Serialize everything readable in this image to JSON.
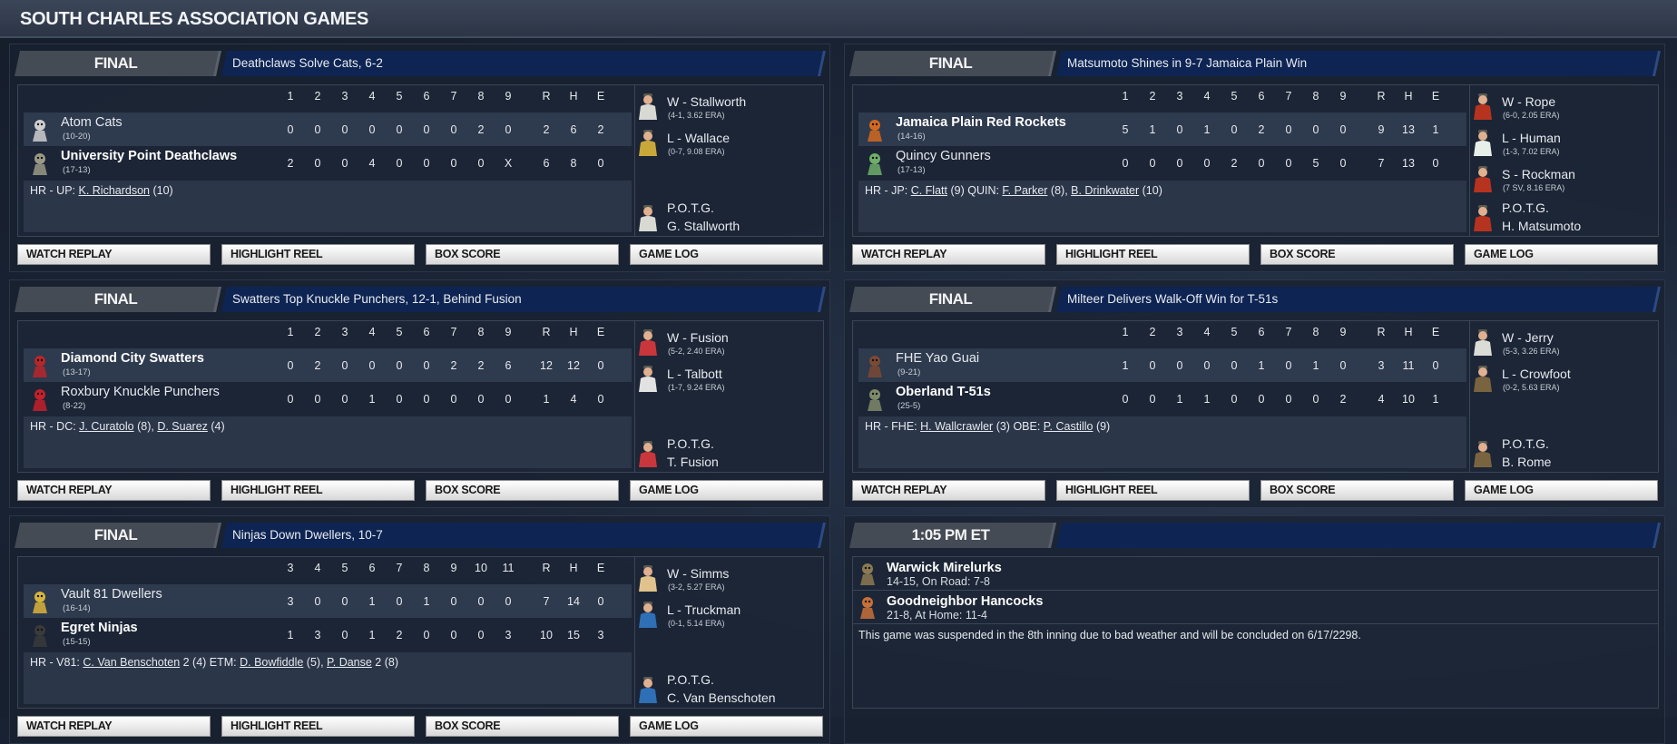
{
  "page_title": "SOUTH CHARLES ASSOCIATION GAMES",
  "buttons": [
    "WATCH REPLAY",
    "HIGHLIGHT REEL",
    "BOX SCORE",
    "GAME LOG"
  ],
  "games": [
    {
      "status": "FINAL",
      "headline": "Deathclaws Solve Cats, 6-2",
      "innings": [
        "1",
        "2",
        "3",
        "4",
        "5",
        "6",
        "7",
        "8",
        "9"
      ],
      "totals_labels": [
        "R",
        "H",
        "E"
      ],
      "teams": [
        {
          "name": "Atom Cats",
          "record": "(10-20)",
          "winner": false,
          "line": [
            "0",
            "0",
            "0",
            "0",
            "0",
            "0",
            "0",
            "2",
            "0"
          ],
          "rhe": [
            "2",
            "6",
            "2"
          ],
          "logo_color": "#cfcfcf"
        },
        {
          "name": "University Point Deathclaws",
          "record": "(17-13)",
          "winner": true,
          "line": [
            "2",
            "0",
            "0",
            "4",
            "0",
            "0",
            "0",
            "0",
            "X"
          ],
          "rhe": [
            "6",
            "8",
            "0"
          ],
          "logo_color": "#9a9a86"
        }
      ],
      "hr": [
        {
          "text": "HR - UP: "
        },
        {
          "text": "K. Richardson",
          "link": true
        },
        {
          "text": " (10)"
        }
      ],
      "pitchers": [
        {
          "label": "W - Stallworth",
          "stats": "(4-1, 3.62 ERA)",
          "jersey": "#d9d9d4"
        },
        {
          "label": "L - Wallace",
          "stats": "(0-7, 9.08 ERA)",
          "jersey": "#c9a83a"
        }
      ],
      "potg": {
        "label": "P.O.T.G.",
        "name": "G. Stallworth",
        "jersey": "#d9d9d4"
      }
    },
    {
      "status": "FINAL",
      "headline": "Matsumoto Shines in 9-7 Jamaica Plain Win",
      "innings": [
        "1",
        "2",
        "3",
        "4",
        "5",
        "6",
        "7",
        "8",
        "9"
      ],
      "totals_labels": [
        "R",
        "H",
        "E"
      ],
      "teams": [
        {
          "name": "Jamaica Plain Red Rockets",
          "record": "(14-16)",
          "winner": true,
          "line": [
            "5",
            "1",
            "0",
            "1",
            "0",
            "2",
            "0",
            "0",
            "0"
          ],
          "rhe": [
            "9",
            "13",
            "1"
          ],
          "logo_color": "#d2691e"
        },
        {
          "name": "Quincy Gunners",
          "record": "(17-13)",
          "winner": false,
          "line": [
            "0",
            "0",
            "0",
            "0",
            "2",
            "0",
            "0",
            "5",
            "0"
          ],
          "rhe": [
            "7",
            "13",
            "0"
          ],
          "logo_color": "#6fae6a"
        }
      ],
      "hr": [
        {
          "text": "HR - JP: "
        },
        {
          "text": "C. Flatt",
          "link": true
        },
        {
          "text": " (9)  QUIN: "
        },
        {
          "text": "F. Parker",
          "link": true
        },
        {
          "text": " (8), "
        },
        {
          "text": "B. Drinkwater",
          "link": true
        },
        {
          "text": " (10)"
        }
      ],
      "pitchers": [
        {
          "label": "W - Rope",
          "stats": "(6-0, 2.05 ERA)",
          "jersey": "#b5331f"
        },
        {
          "label": "L - Human",
          "stats": "(1-3, 7.02 ERA)",
          "jersey": "#e8efe8"
        },
        {
          "label": "S - Rockman",
          "stats": "(7 SV, 8.16 ERA)",
          "jersey": "#b5331f"
        }
      ],
      "potg": {
        "label": "P.O.T.G.",
        "name": "H. Matsumoto",
        "jersey": "#b5331f"
      }
    },
    {
      "status": "FINAL",
      "headline": "Swatters Top Knuckle Punchers, 12-1, Behind Fusion",
      "innings": [
        "1",
        "2",
        "3",
        "4",
        "5",
        "6",
        "7",
        "8",
        "9"
      ],
      "totals_labels": [
        "R",
        "H",
        "E"
      ],
      "teams": [
        {
          "name": "Diamond City Swatters",
          "record": "(13-17)",
          "winner": true,
          "line": [
            "0",
            "2",
            "0",
            "0",
            "0",
            "0",
            "2",
            "2",
            "6"
          ],
          "rhe": [
            "12",
            "12",
            "0"
          ],
          "logo_color": "#b8262a"
        },
        {
          "name": "Roxbury Knuckle Punchers",
          "record": "(8-22)",
          "winner": false,
          "line": [
            "0",
            "0",
            "0",
            "1",
            "0",
            "0",
            "0",
            "0",
            "0"
          ],
          "rhe": [
            "1",
            "4",
            "0"
          ],
          "logo_color": "#c6202a"
        }
      ],
      "hr": [
        {
          "text": "HR - DC: "
        },
        {
          "text": "J. Curatolo",
          "link": true
        },
        {
          "text": " (8), "
        },
        {
          "text": "D. Suarez",
          "link": true
        },
        {
          "text": " (4)"
        }
      ],
      "pitchers": [
        {
          "label": "W - Fusion",
          "stats": "(5-2, 2.40 ERA)",
          "jersey": "#c9363b"
        },
        {
          "label": "L - Talbott",
          "stats": "(1-7, 9.24 ERA)",
          "jersey": "#e2e2e2"
        }
      ],
      "potg": {
        "label": "P.O.T.G.",
        "name": "T. Fusion",
        "jersey": "#c9363b"
      }
    },
    {
      "status": "FINAL",
      "headline": "Milteer Delivers Walk-Off Win for T-51s",
      "innings": [
        "1",
        "2",
        "3",
        "4",
        "5",
        "6",
        "7",
        "8",
        "9"
      ],
      "totals_labels": [
        "R",
        "H",
        "E"
      ],
      "teams": [
        {
          "name": "FHE Yao Guai",
          "record": "(9-21)",
          "winner": false,
          "line": [
            "1",
            "0",
            "0",
            "0",
            "0",
            "1",
            "0",
            "1",
            "0"
          ],
          "rhe": [
            "3",
            "11",
            "0"
          ],
          "logo_color": "#7a4a32"
        },
        {
          "name": "Oberland T-51s",
          "record": "(25-5)",
          "winner": true,
          "line": [
            "0",
            "0",
            "1",
            "1",
            "0",
            "0",
            "0",
            "0",
            "2"
          ],
          "rhe": [
            "4",
            "10",
            "1"
          ],
          "logo_color": "#7f8a6a"
        }
      ],
      "hr": [
        {
          "text": "HR - FHE: "
        },
        {
          "text": "H. Wallcrawler",
          "link": true
        },
        {
          "text": " (3)  OBE: "
        },
        {
          "text": "P. Castillo",
          "link": true
        },
        {
          "text": " (9)"
        }
      ],
      "pitchers": [
        {
          "label": "W - Jerry",
          "stats": "(5-3, 3.26 ERA)",
          "jersey": "#dcdcd6"
        },
        {
          "label": "L - Crowfoot",
          "stats": "(0-2, 5.63 ERA)",
          "jersey": "#7a6440"
        }
      ],
      "potg": {
        "label": "P.O.T.G.",
        "name": "B. Rome",
        "jersey": "#7a6440"
      }
    },
    {
      "status": "FINAL",
      "headline": "Ninjas Down Dwellers, 10-7",
      "innings": [
        "3",
        "4",
        "5",
        "6",
        "7",
        "8",
        "9",
        "10",
        "11"
      ],
      "totals_labels": [
        "R",
        "H",
        "E"
      ],
      "teams": [
        {
          "name": "Vault 81 Dwellers",
          "record": "(16-14)",
          "winner": false,
          "line": [
            "3",
            "0",
            "0",
            "1",
            "0",
            "1",
            "0",
            "0",
            "0"
          ],
          "rhe": [
            "7",
            "14",
            "0"
          ],
          "logo_color": "#d9b43c"
        },
        {
          "name": "Egret Ninjas",
          "record": "(15-15)",
          "winner": true,
          "line": [
            "1",
            "3",
            "0",
            "1",
            "2",
            "0",
            "0",
            "0",
            "3"
          ],
          "rhe": [
            "10",
            "15",
            "3"
          ],
          "logo_color": "#3a3a3a"
        }
      ],
      "hr": [
        {
          "text": "HR - V81: "
        },
        {
          "text": "C. Van Benschoten",
          "link": true
        },
        {
          "text": " 2 (4)  ETM: "
        },
        {
          "text": "D. Bowfiddle",
          "link": true
        },
        {
          "text": " (5), "
        },
        {
          "text": "P. Danse",
          "link": true
        },
        {
          "text": " 2 (8)"
        }
      ],
      "pitchers": [
        {
          "label": "W - Simms",
          "stats": "(3-2, 5.27 ERA)",
          "jersey": "#e0c38c"
        },
        {
          "label": "L - Truckman",
          "stats": "(0-1, 5.14 ERA)",
          "jersey": "#2f6fb5"
        }
      ],
      "potg": {
        "label": "P.O.T.G.",
        "name": "C. Van Benschoten",
        "jersey": "#2f6fb5"
      }
    }
  ],
  "scheduled_game": {
    "status": "1:05 PM ET",
    "teams": [
      {
        "name": "Warwick Mirelurks",
        "record": "14-15, On Road: 7-8",
        "logo_color": "#8c7a52"
      },
      {
        "name": "Goodneighbor Hancocks",
        "record": "21-8, At Home: 11-4",
        "logo_color": "#c8703a"
      }
    ],
    "note": "This game was suspended in the 8th inning due to bad weather and will be concluded on 6/17/2298."
  }
}
